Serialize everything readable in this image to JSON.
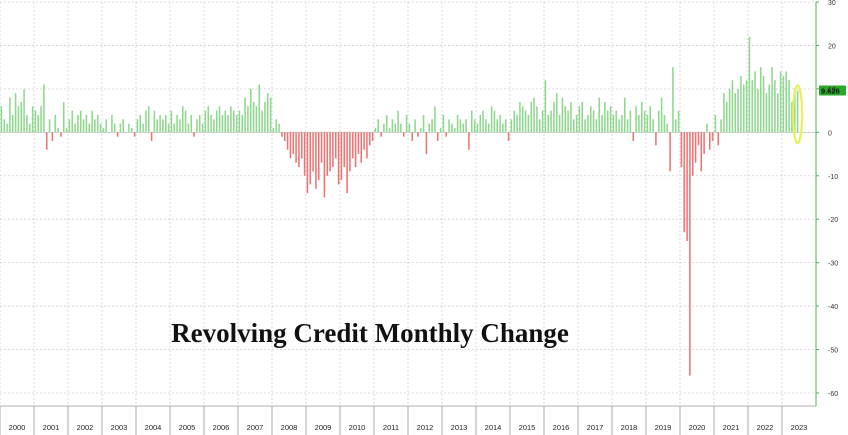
{
  "chart_data": {
    "type": "bar",
    "title": "Revolving Credit Monthly Change",
    "xlabel": "",
    "ylabel": "",
    "ylim": [
      -63,
      30
    ],
    "y_ticks": [
      "30",
      "20",
      "10",
      "0",
      "-10",
      "-20",
      "-30",
      "-40",
      "-50",
      "-60"
    ],
    "year_labels": [
      "2000",
      "2001",
      "2002",
      "2003",
      "2004",
      "2005",
      "2006",
      "2007",
      "2008",
      "2009",
      "2010",
      "2011",
      "2012",
      "2013",
      "2014",
      "2015",
      "2016",
      "2017",
      "2018",
      "2019",
      "2020",
      "2021",
      "2022",
      "2023"
    ],
    "x_start": "2000-01",
    "grid": true,
    "last_value_label": "9.626",
    "colors": {
      "positive": "#8ed88e",
      "negative": "#ef7373",
      "highlight": "#e6f05a",
      "badge": "#2aa82a"
    },
    "values": [
      6,
      3,
      2,
      8,
      4,
      9,
      6,
      7,
      10,
      4,
      2,
      6,
      5,
      4,
      6,
      11,
      -4,
      3,
      -2,
      4,
      1,
      -1,
      7,
      1,
      3,
      5,
      2,
      4,
      5,
      3,
      4,
      2,
      5,
      3,
      4,
      2,
      1,
      3,
      0,
      4,
      2,
      -1,
      2,
      3,
      0,
      2,
      1,
      -1,
      3,
      4,
      2,
      5,
      6,
      -2,
      5,
      3,
      4,
      3,
      4,
      2,
      5,
      2,
      4,
      3,
      6,
      5,
      2,
      4,
      -1,
      3,
      4,
      2,
      5,
      6,
      4,
      3,
      5,
      6,
      4,
      5,
      4,
      6,
      5,
      4,
      5,
      4,
      8,
      6,
      10,
      7,
      6,
      11,
      5,
      7,
      9,
      8,
      1,
      3,
      2,
      -1,
      -2,
      -4,
      -6,
      -5,
      -7,
      -8,
      -6,
      -10,
      -14,
      -12,
      -9,
      -13,
      -11,
      -7,
      -15,
      -10,
      -9,
      -8,
      -6,
      -12,
      -11,
      -8,
      -14,
      -9,
      -6,
      -8,
      -5,
      -7,
      -4,
      -6,
      -3,
      -2,
      1,
      3,
      -1,
      2,
      4,
      1,
      3,
      2,
      5,
      2,
      -1,
      4,
      2,
      -2,
      3,
      -1,
      1,
      4,
      -5,
      2,
      3,
      6,
      -2,
      1,
      4,
      -1,
      3,
      2,
      1,
      4,
      3,
      2,
      3,
      -4,
      5,
      3,
      2,
      4,
      5,
      3,
      2,
      6,
      5,
      3,
      4,
      2,
      3,
      -2,
      3,
      5,
      4,
      7,
      6,
      5,
      4,
      7,
      8,
      6,
      3,
      5,
      12,
      4,
      5,
      7,
      9,
      4,
      8,
      6,
      5,
      7,
      3,
      4,
      6,
      7,
      3,
      4,
      6,
      5,
      3,
      8,
      4,
      7,
      5,
      6,
      4,
      5,
      3,
      4,
      8,
      3,
      5,
      -2,
      6,
      4,
      7,
      5,
      4,
      6,
      3,
      -3,
      5,
      8,
      4,
      2,
      -9,
      15,
      3,
      5,
      -8,
      -23,
      -25,
      -56,
      -10,
      -7,
      -3,
      -9,
      -5,
      2,
      -4,
      -2,
      4,
      -3,
      3,
      9,
      7,
      10,
      12,
      9,
      10,
      13,
      11,
      12,
      22,
      12,
      14,
      10,
      15,
      13,
      9,
      11,
      15,
      12,
      9,
      14,
      13,
      14,
      12,
      7,
      10,
      9.626
    ]
  }
}
